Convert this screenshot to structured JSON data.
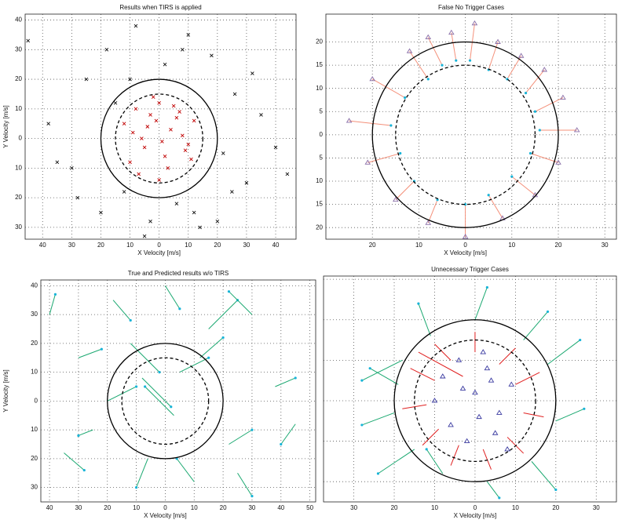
{
  "chart_data": [
    {
      "type": "scatter",
      "title": "Results when TIRS is applied",
      "xlabel": "X Velocity [m/s]",
      "ylabel": "Y Velocity [m/s]",
      "xlim": [
        -46,
        47
      ],
      "ylim": [
        -34,
        42
      ],
      "xticks": [
        {
          "value": -40,
          "label": "40"
        },
        {
          "value": -30,
          "label": "30"
        },
        {
          "value": -20,
          "label": "20"
        },
        {
          "value": -10,
          "label": "10"
        },
        0,
        10,
        20,
        30,
        40
      ],
      "yticks": [
        {
          "value": -30,
          "label": "30"
        },
        {
          "value": -20,
          "label": "20"
        },
        {
          "value": -10,
          "label": "10"
        },
        0,
        10,
        20,
        30,
        40
      ],
      "grid": true,
      "circles": [
        {
          "r": 15,
          "dashed": true
        },
        {
          "r": 20,
          "dashed": false
        }
      ],
      "series": [
        {
          "color": "#111111",
          "marker": "x",
          "x": [
            -45,
            -38,
            -30,
            -25,
            -20,
            -18,
            -12,
            -8,
            -3,
            2,
            6,
            10,
            14,
            18,
            22,
            26,
            30,
            35,
            40,
            44,
            -28,
            -15,
            -5,
            8,
            20,
            32,
            -35,
            12,
            -10,
            25
          ],
          "y": [
            33,
            5,
            -10,
            20,
            -25,
            30,
            -18,
            38,
            -28,
            25,
            -22,
            35,
            -30,
            28,
            -5,
            15,
            -15,
            8,
            -3,
            -12,
            -20,
            12,
            -33,
            30,
            -28,
            22,
            -8,
            -25,
            20,
            -18
          ]
        },
        {
          "color": "#c00000",
          "marker": "x",
          "x": [
            -12,
            -8,
            -5,
            -3,
            0,
            2,
            4,
            7,
            10,
            12,
            -10,
            -6,
            -2,
            3,
            6,
            9,
            -4,
            1,
            5,
            -7,
            8,
            -1,
            11,
            -9,
            0
          ],
          "y": [
            5,
            10,
            -3,
            8,
            12,
            -6,
            3,
            9,
            -2,
            6,
            -8,
            0,
            14,
            -10,
            7,
            -4,
            4,
            -1,
            11,
            -12,
            1,
            6,
            -7,
            2,
            -14
          ]
        }
      ]
    },
    {
      "type": "scatter",
      "title": "False No  Trigger Cases",
      "xlabel": "X Velocity [m/s]",
      "xlim": [
        -30,
        32.5
      ],
      "ylim": [
        -22.5,
        26
      ],
      "xticks": [
        {
          "value": -20,
          "label": "20"
        },
        {
          "value": -10,
          "label": "10"
        },
        0,
        10,
        20,
        30
      ],
      "yticks": [
        {
          "value": -20,
          "label": "20"
        },
        {
          "value": -15,
          "label": "15"
        },
        {
          "value": -10,
          "label": "10"
        },
        {
          "value": -5,
          "label": "5"
        },
        0,
        5,
        10,
        15,
        20
      ],
      "grid": true,
      "circles": [
        {
          "r": 15,
          "dashed": true
        },
        {
          "r": 20,
          "dashed": false
        }
      ],
      "arrows": [
        {
          "color": "#f4907a",
          "start_marker": "triangle",
          "start_color": "#8a6fa8",
          "end_marker": "dot",
          "end_color": "#18b4d8",
          "x": [
            -12,
            -8,
            -3,
            2,
            7,
            12,
            17,
            21,
            24,
            20,
            15,
            8,
            0,
            -8,
            -15,
            -21,
            -25,
            -20
          ],
          "y": [
            18,
            21,
            22,
            24,
            20,
            17,
            14,
            8,
            1,
            -6,
            -13,
            -18,
            -22,
            -19,
            -14,
            -6,
            3,
            12
          ],
          "x_end": [
            -8,
            -5,
            -2,
            1,
            5,
            9,
            13,
            15,
            16,
            14,
            10,
            5,
            0,
            -6,
            -11,
            -14,
            -16,
            -13
          ],
          "y_end": [
            12,
            15,
            16,
            16,
            14,
            12,
            9,
            5,
            1,
            -4,
            -9,
            -13,
            -15,
            -14,
            -10,
            -4,
            2,
            8
          ]
        }
      ]
    },
    {
      "type": "scatter",
      "title": "True and Predicted results w/o TIRS",
      "xlabel": "X Velocity [m/s]",
      "ylabel": "Y Velocity [m/s]",
      "xlim": [
        -43,
        52
      ],
      "ylim": [
        -35,
        42
      ],
      "xticks": [
        {
          "value": -40,
          "label": "40"
        },
        {
          "value": -30,
          "label": "30"
        },
        {
          "value": -20,
          "label": "20"
        },
        {
          "value": -10,
          "label": "10"
        },
        0,
        10,
        20,
        30,
        40,
        50
      ],
      "yticks": [
        {
          "value": -30,
          "label": "30"
        },
        {
          "value": -20,
          "label": "20"
        },
        {
          "value": -10,
          "label": "10"
        },
        0,
        10,
        20,
        30,
        40
      ],
      "grid": true,
      "circles": [
        {
          "r": 15,
          "dashed": true
        },
        {
          "r": 20,
          "dashed": false
        }
      ],
      "arrows": [
        {
          "color": "#1aa870",
          "end_marker": "dot",
          "end_color": "#18b4d8",
          "x": [
            -40,
            -30,
            -25,
            -18,
            -12,
            -6,
            0,
            5,
            10,
            15,
            22,
            30,
            38,
            45,
            -20,
            -8,
            3,
            12,
            25,
            -35
          ],
          "y": [
            30,
            15,
            -10,
            35,
            20,
            -20,
            40,
            10,
            -28,
            25,
            -15,
            30,
            5,
            -8,
            0,
            8,
            -5,
            15,
            -25,
            -18
          ],
          "x_end": [
            -38,
            -22,
            -30,
            -12,
            -2,
            -10,
            5,
            15,
            4,
            25,
            30,
            22,
            45,
            40,
            -10,
            2,
            -7,
            20,
            30,
            -28
          ],
          "y_end": [
            37,
            18,
            -12,
            28,
            10,
            -30,
            32,
            15,
            -20,
            35,
            -10,
            38,
            8,
            -15,
            5,
            -2,
            5,
            22,
            -33,
            -24
          ]
        }
      ]
    },
    {
      "type": "scatter",
      "title": "Unnecessary Trigger Cases",
      "xlabel": "X Velocity [m/s]",
      "xlim": [
        -37.5,
        35
      ],
      "ylim": [
        -25,
        30.8
      ],
      "xticks": [
        {
          "value": -30,
          "label": "30"
        },
        {
          "value": -20,
          "label": "20"
        },
        {
          "value": -10,
          "label": "10"
        },
        0,
        10,
        20,
        30
      ],
      "yticks": [
        -20,
        -10,
        0,
        10,
        20,
        30
      ],
      "ytick_labels": false,
      "grid": true,
      "circles": [
        {
          "r": 15,
          "dashed": true
        },
        {
          "r": 20,
          "dashed": false
        }
      ],
      "series": [
        {
          "color": "#3a3aa0",
          "marker": "triangle",
          "x": [
            -8,
            -4,
            0,
            3,
            6,
            9,
            -6,
            -2,
            2,
            5,
            -10,
            8,
            1,
            -3,
            4
          ],
          "y": [
            6,
            10,
            2,
            8,
            -3,
            4,
            -6,
            -10,
            12,
            -8,
            0,
            -12,
            -4,
            3,
            5
          ]
        }
      ],
      "arrows": [
        {
          "color": "#e02020",
          "x": [
            -10,
            -6,
            0,
            6,
            10,
            12,
            8,
            2,
            -4,
            -9,
            -12,
            -3
          ],
          "y": [
            5,
            10,
            12,
            9,
            4,
            -3,
            -9,
            -12,
            -11,
            -7,
            -1,
            6
          ],
          "x_end": [
            -16,
            -10,
            0,
            10,
            16,
            17,
            12,
            4,
            -6,
            -13,
            -18,
            -14
          ],
          "y_end": [
            8,
            14,
            17,
            13,
            7,
            -4,
            -13,
            -17,
            -16,
            -11,
            -2,
            12
          ]
        },
        {
          "color": "#1aa870",
          "end_marker": "dot",
          "end_color": "#18b4d8",
          "x": [
            -18,
            -11,
            0,
            12,
            18,
            20,
            14,
            3,
            -8,
            -15,
            -20,
            -19
          ],
          "y": [
            10,
            16,
            20,
            15,
            9,
            -5,
            -15,
            -20,
            -18,
            -12,
            -3,
            4
          ],
          "x_end": [
            -28,
            -14,
            3,
            18,
            26,
            27,
            20,
            6,
            -12,
            -24,
            -28,
            -26
          ],
          "y_end": [
            5,
            24,
            28,
            22,
            15,
            -2,
            -22,
            -24,
            -12,
            -18,
            -6,
            8
          ]
        }
      ]
    }
  ]
}
